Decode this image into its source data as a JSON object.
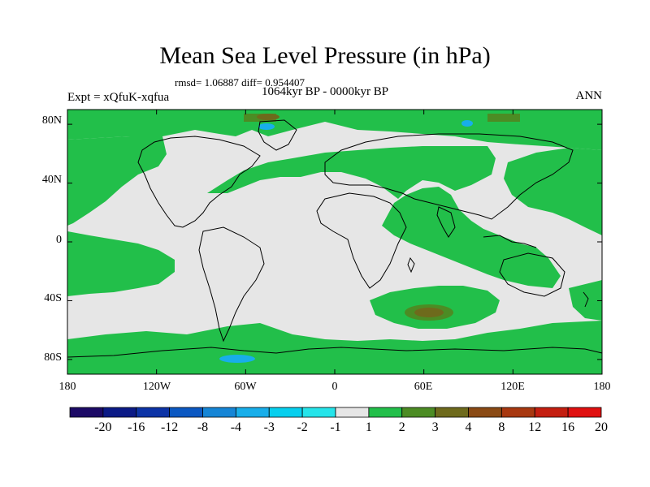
{
  "header": {
    "title": "Mean Sea Level Pressure (in hPa)",
    "stats": "rmsd= 1.06887 diff= 0.954407",
    "period": "1064kyr BP - 0000kyr BP",
    "experiment": "Expt = xQfuK-xqfua",
    "season": "ANN"
  },
  "map": {
    "lat_labels": [
      "80N",
      "40N",
      "0",
      "40S",
      "80S"
    ],
    "lon_labels": [
      "180",
      "120W",
      "60W",
      "0",
      "60E",
      "120E",
      "180"
    ],
    "lat_range": [
      -90,
      90
    ],
    "lon_range": [
      -180,
      180
    ],
    "background_color": "#e6e6e6",
    "anomaly_color_1_2": "#22bf4a",
    "anomaly_color_2_3": "#4c8c24",
    "anomaly_color_3_4": "#6e6a1c",
    "coastline_color": "#000000"
  },
  "colorbar": {
    "labels": [
      "-20",
      "-16",
      "-12",
      "-8",
      "-4",
      "-3",
      "-2",
      "-1",
      "1",
      "2",
      "3",
      "4",
      "8",
      "12",
      "16",
      "20"
    ],
    "colors": [
      "#1c0a66",
      "#0b1a86",
      "#0c33a6",
      "#0b58c2",
      "#1585d6",
      "#18aeea",
      "#06cfee",
      "#25e4ea",
      "#e6e6e6",
      "#22bf4a",
      "#4c8c24",
      "#6e6a1c",
      "#8a4a14",
      "#a83810",
      "#c41e10",
      "#e01010"
    ]
  }
}
